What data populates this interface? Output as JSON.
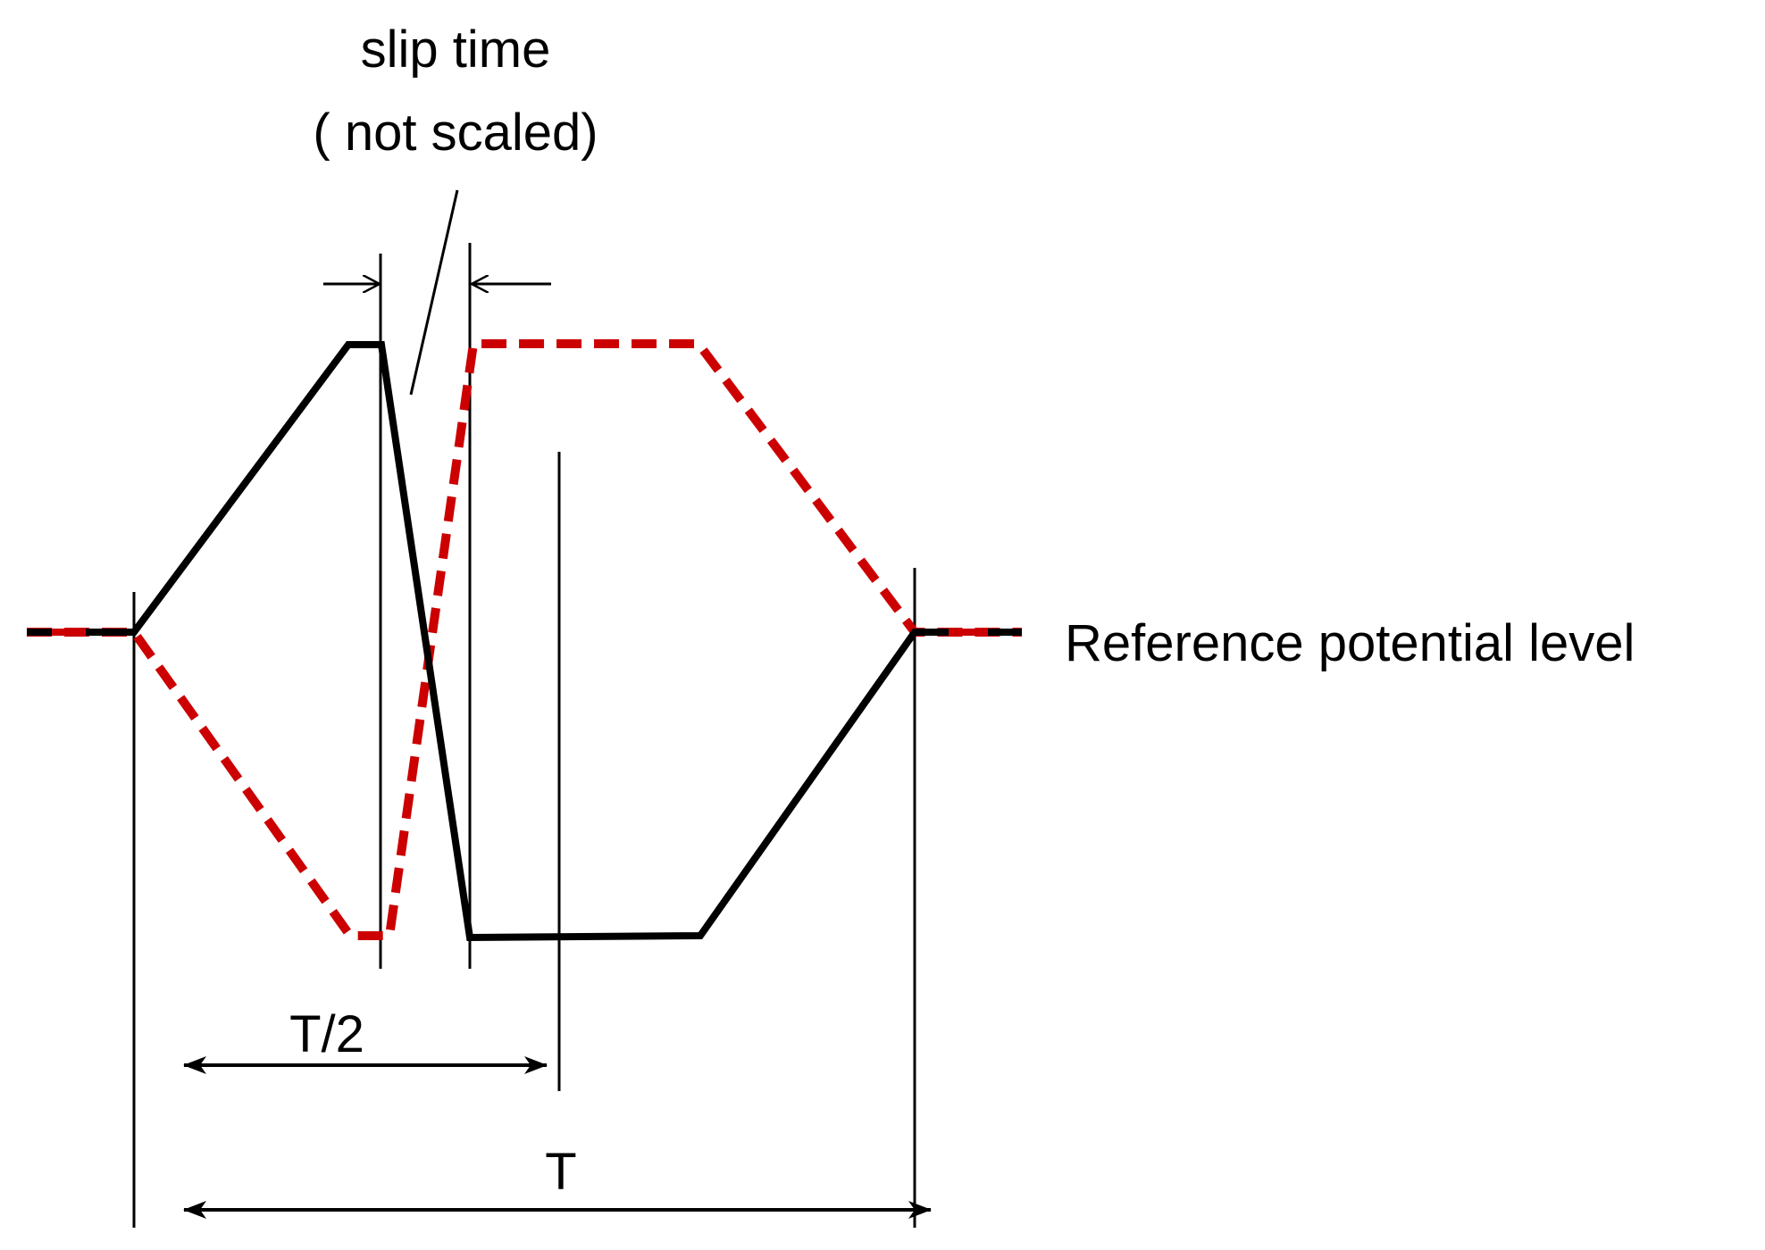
{
  "labels": {
    "slip_time_line1": "slip time",
    "slip_time_line2": "( not scaled)",
    "reference_level": "Reference potential level",
    "half_period": "T/2",
    "period": "T"
  },
  "colors": {
    "solid_waveform": "#000000",
    "dashed_waveform": "#cc0000",
    "guide_lines": "#000000",
    "background": "#ffffff"
  }
}
